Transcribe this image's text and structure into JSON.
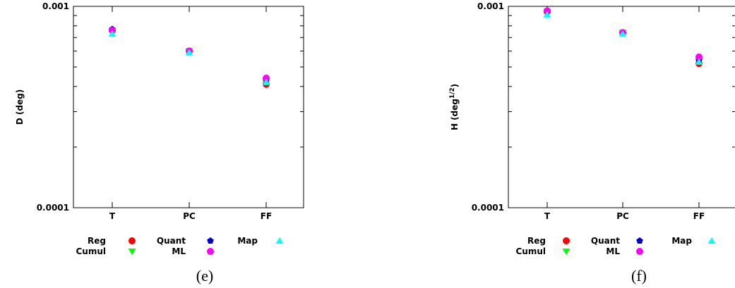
{
  "chart_data": [
    {
      "type": "scatter",
      "caption": "(e)",
      "ylabel": "D (deg)",
      "yscale": "log",
      "ylim": [
        0.0001,
        0.001
      ],
      "yticklabels": [
        "0.0001",
        "0.001"
      ],
      "categories": [
        "T",
        "PC",
        "FF"
      ],
      "series": [
        {
          "name": "Reg",
          "color": "#ff0000",
          "marker": "circle",
          "values": [
            0.00076,
            0.0006,
            0.00041
          ]
        },
        {
          "name": "Cumul",
          "color": "#00ff00",
          "marker": "triangle-down",
          "values": [
            0.00075,
            0.0006,
            0.00042
          ]
        },
        {
          "name": "Quant",
          "color": "#0000cc",
          "marker": "pentagon",
          "values": [
            0.00077,
            0.00059,
            0.00043
          ]
        },
        {
          "name": "ML",
          "color": "#ff00ff",
          "marker": "circle",
          "values": [
            0.00076,
            0.0006,
            0.00044
          ]
        },
        {
          "name": "Map",
          "color": "#00ffff",
          "marker": "triangle-up",
          "values": [
            0.00073,
            0.00059,
            0.00042
          ]
        }
      ]
    },
    {
      "type": "scatter",
      "caption": "(f)",
      "ylabel": "H (deg",
      "ylabel_sup": "1/2",
      "ylabel_close": ")",
      "yscale": "log",
      "ylim": [
        0.0001,
        0.001
      ],
      "yticklabels": [
        "0.0001",
        "0.001"
      ],
      "categories": [
        "T",
        "PC",
        "FF"
      ],
      "series": [
        {
          "name": "Reg",
          "color": "#ff0000",
          "marker": "circle",
          "values": [
            0.00094,
            0.00074,
            0.00052
          ]
        },
        {
          "name": "Cumul",
          "color": "#00ff00",
          "marker": "triangle-down",
          "values": [
            0.00094,
            0.00074,
            0.00053
          ]
        },
        {
          "name": "Quant",
          "color": "#0000cc",
          "marker": "pentagon",
          "values": [
            0.00095,
            0.00074,
            0.00054
          ]
        },
        {
          "name": "ML",
          "color": "#ff00ff",
          "marker": "circle",
          "values": [
            0.00095,
            0.00074,
            0.00056
          ]
        },
        {
          "name": "Map",
          "color": "#00ffff",
          "marker": "triangle-up",
          "values": [
            0.00091,
            0.00073,
            0.00053
          ]
        }
      ]
    }
  ]
}
